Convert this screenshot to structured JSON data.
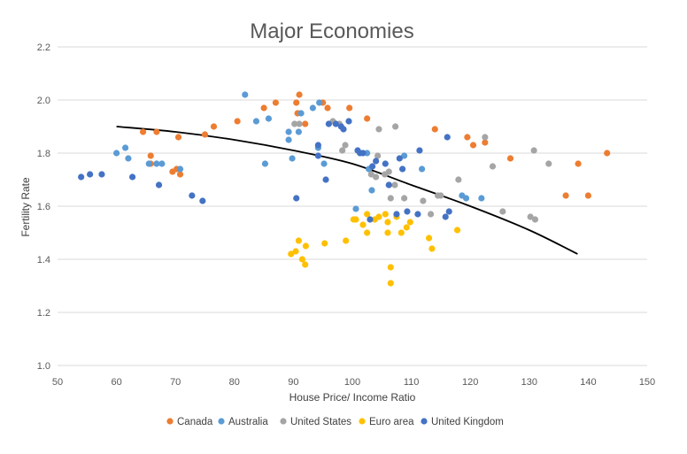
{
  "chart_data": {
    "type": "scatter",
    "title": "Major Economies",
    "xlabel": "House Price/ Income Ratio",
    "ylabel": "Fertility Rate",
    "xlim": [
      50,
      150
    ],
    "ylim": [
      1.0,
      2.2
    ],
    "xticks": [
      "50",
      "60",
      "70",
      "80",
      "90",
      "100",
      "110",
      "120",
      "130",
      "140",
      "150"
    ],
    "yticks": [
      "1.0",
      "1.2",
      "1.4",
      "1.6",
      "1.8",
      "2.0",
      "2.2"
    ],
    "grid": true,
    "legend_position": "bottom",
    "series": [
      {
        "name": "Canada",
        "color": "#ED7D31",
        "points": [
          [
            64.5,
            1.88
          ],
          [
            65.8,
            1.79
          ],
          [
            66.8,
            1.88
          ],
          [
            65.8,
            1.76
          ],
          [
            69.5,
            1.73
          ],
          [
            70.5,
            1.86
          ],
          [
            70.2,
            1.74
          ],
          [
            70.8,
            1.72
          ],
          [
            75,
            1.87
          ],
          [
            76.5,
            1.9
          ],
          [
            80.5,
            1.92
          ],
          [
            85,
            1.97
          ],
          [
            87,
            1.99
          ],
          [
            90.5,
            1.99
          ],
          [
            91,
            2.02
          ],
          [
            90.7,
            1.95
          ],
          [
            92,
            1.91
          ],
          [
            95,
            1.99
          ],
          [
            95.8,
            1.97
          ],
          [
            99.5,
            1.97
          ],
          [
            102.5,
            1.93
          ],
          [
            114,
            1.89
          ],
          [
            119.5,
            1.86
          ],
          [
            120.5,
            1.83
          ],
          [
            122.5,
            1.84
          ],
          [
            126.8,
            1.78
          ],
          [
            136.2,
            1.64
          ],
          [
            138.3,
            1.76
          ],
          [
            140,
            1.64
          ],
          [
            143.2,
            1.8
          ]
        ]
      },
      {
        "name": "Australia",
        "color": "#5B9BD5",
        "points": [
          [
            60,
            1.8
          ],
          [
            61.5,
            1.82
          ],
          [
            62,
            1.78
          ],
          [
            65.5,
            1.76
          ],
          [
            66.8,
            1.76
          ],
          [
            67.7,
            1.76
          ],
          [
            70.8,
            1.74
          ],
          [
            81.8,
            2.02
          ],
          [
            83.7,
            1.92
          ],
          [
            85.2,
            1.76
          ],
          [
            85.8,
            1.93
          ],
          [
            89.2,
            1.85
          ],
          [
            89.2,
            1.88
          ],
          [
            89.8,
            1.78
          ],
          [
            90.9,
            1.88
          ],
          [
            91.3,
            1.95
          ],
          [
            93.3,
            1.97
          ],
          [
            94.4,
            1.99
          ],
          [
            94.2,
            1.82
          ],
          [
            95.2,
            1.76
          ],
          [
            100.6,
            1.59
          ],
          [
            102.5,
            1.8
          ],
          [
            102.8,
            1.74
          ],
          [
            103.3,
            1.66
          ],
          [
            108.8,
            1.79
          ],
          [
            111.8,
            1.74
          ],
          [
            118.6,
            1.64
          ],
          [
            119.3,
            1.63
          ],
          [
            121.9,
            1.63
          ]
        ]
      },
      {
        "name": "United States",
        "color": "#A5A5A5",
        "points": [
          [
            90.2,
            1.91
          ],
          [
            91,
            1.91
          ],
          [
            96.7,
            1.92
          ],
          [
            97.8,
            1.91
          ],
          [
            98.8,
            1.83
          ],
          [
            98.3,
            1.81
          ],
          [
            103.2,
            1.72
          ],
          [
            104,
            1.71
          ],
          [
            104.3,
            1.79
          ],
          [
            104.5,
            1.89
          ],
          [
            105.5,
            1.72
          ],
          [
            106.2,
            1.73
          ],
          [
            106.2,
            1.68
          ],
          [
            106.5,
            1.63
          ],
          [
            107.3,
            1.9
          ],
          [
            107.2,
            1.68
          ],
          [
            108.8,
            1.63
          ],
          [
            112,
            1.62
          ],
          [
            113.3,
            1.57
          ],
          [
            114.5,
            1.64
          ],
          [
            115,
            1.64
          ],
          [
            118,
            1.7
          ],
          [
            122.5,
            1.86
          ],
          [
            123.8,
            1.75
          ],
          [
            125.5,
            1.58
          ],
          [
            130.2,
            1.56
          ],
          [
            130.8,
            1.81
          ],
          [
            131,
            1.55
          ],
          [
            133.3,
            1.76
          ]
        ]
      },
      {
        "name": "Euro area",
        "color": "#FFC000",
        "points": [
          [
            89.6,
            1.42
          ],
          [
            90.4,
            1.43
          ],
          [
            90.9,
            1.47
          ],
          [
            91.5,
            1.4
          ],
          [
            92,
            1.38
          ],
          [
            92.1,
            1.45
          ],
          [
            95.3,
            1.46
          ],
          [
            98.9,
            1.47
          ],
          [
            100.2,
            1.55
          ],
          [
            100.6,
            1.55
          ],
          [
            101.8,
            1.53
          ],
          [
            102.5,
            1.5
          ],
          [
            102.5,
            1.57
          ],
          [
            103.8,
            1.55
          ],
          [
            104.5,
            1.56
          ],
          [
            105.6,
            1.57
          ],
          [
            106,
            1.54
          ],
          [
            106,
            1.5
          ],
          [
            106.5,
            1.37
          ],
          [
            106.5,
            1.31
          ],
          [
            107.5,
            1.56
          ],
          [
            108.3,
            1.5
          ],
          [
            109.2,
            1.52
          ],
          [
            109.8,
            1.54
          ],
          [
            113,
            1.48
          ],
          [
            113.5,
            1.44
          ],
          [
            117.8,
            1.51
          ]
        ]
      },
      {
        "name": "United Kingdom",
        "color": "#4472C4",
        "points": [
          [
            54,
            1.71
          ],
          [
            55.5,
            1.72
          ],
          [
            57.5,
            1.72
          ],
          [
            62.7,
            1.71
          ],
          [
            67.2,
            1.68
          ],
          [
            72.8,
            1.64
          ],
          [
            74.6,
            1.62
          ],
          [
            90.5,
            1.63
          ],
          [
            94.2,
            1.83
          ],
          [
            94.2,
            1.79
          ],
          [
            95.5,
            1.7
          ],
          [
            96,
            1.91
          ],
          [
            97.2,
            1.91
          ],
          [
            98.1,
            1.9
          ],
          [
            98.5,
            1.89
          ],
          [
            99.4,
            1.92
          ],
          [
            100.9,
            1.81
          ],
          [
            101.3,
            1.8
          ],
          [
            101.8,
            1.8
          ],
          [
            103,
            1.55
          ],
          [
            103.4,
            1.75
          ],
          [
            104,
            1.77
          ],
          [
            105.6,
            1.76
          ],
          [
            106.2,
            1.68
          ],
          [
            107.5,
            1.57
          ],
          [
            108,
            1.78
          ],
          [
            108.5,
            1.74
          ],
          [
            109.3,
            1.58
          ],
          [
            111.1,
            1.57
          ],
          [
            111.4,
            1.81
          ],
          [
            115.8,
            1.56
          ],
          [
            116.1,
            1.86
          ],
          [
            116.4,
            1.58
          ]
        ]
      }
    ],
    "trendline": {
      "color": "#000000",
      "points": [
        [
          60,
          1.9
        ],
        [
          70,
          1.88
        ],
        [
          80,
          1.85
        ],
        [
          90,
          1.81
        ],
        [
          100,
          1.76
        ],
        [
          110,
          1.68
        ],
        [
          120,
          1.6
        ],
        [
          130,
          1.51
        ],
        [
          138.2,
          1.42
        ]
      ]
    }
  }
}
